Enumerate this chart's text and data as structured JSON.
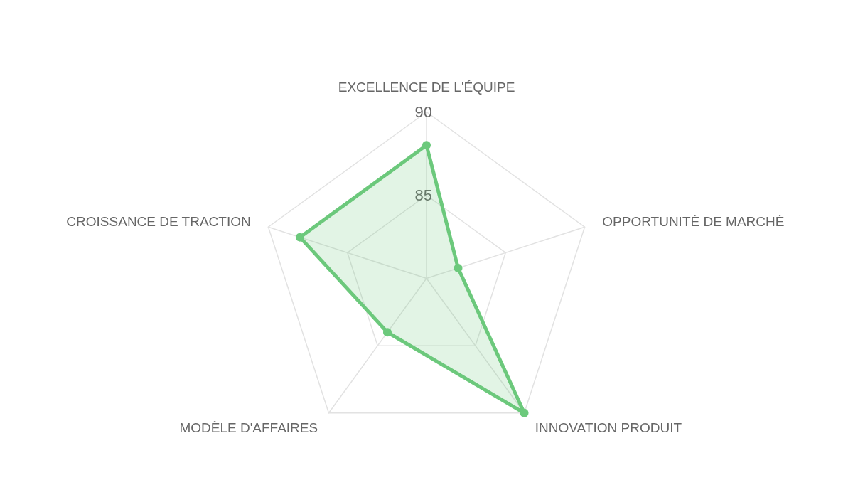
{
  "chart_data": {
    "type": "radar",
    "categories": [
      "EXCELLENCE DE L'ÉQUIPE",
      "OPPORTUNITÉ DE MARCHÉ",
      "INNOVATION PRODUIT",
      "MODÈLE D'AFFAIRES",
      "CROISSANCE DE TRACTION"
    ],
    "series": [
      {
        "color": "#6cc97c",
        "values": [
          88,
          82,
          90,
          84,
          88
        ]
      }
    ],
    "ylim": [
      80,
      90
    ],
    "yticks": [
      85,
      90
    ],
    "marker": "circle"
  }
}
